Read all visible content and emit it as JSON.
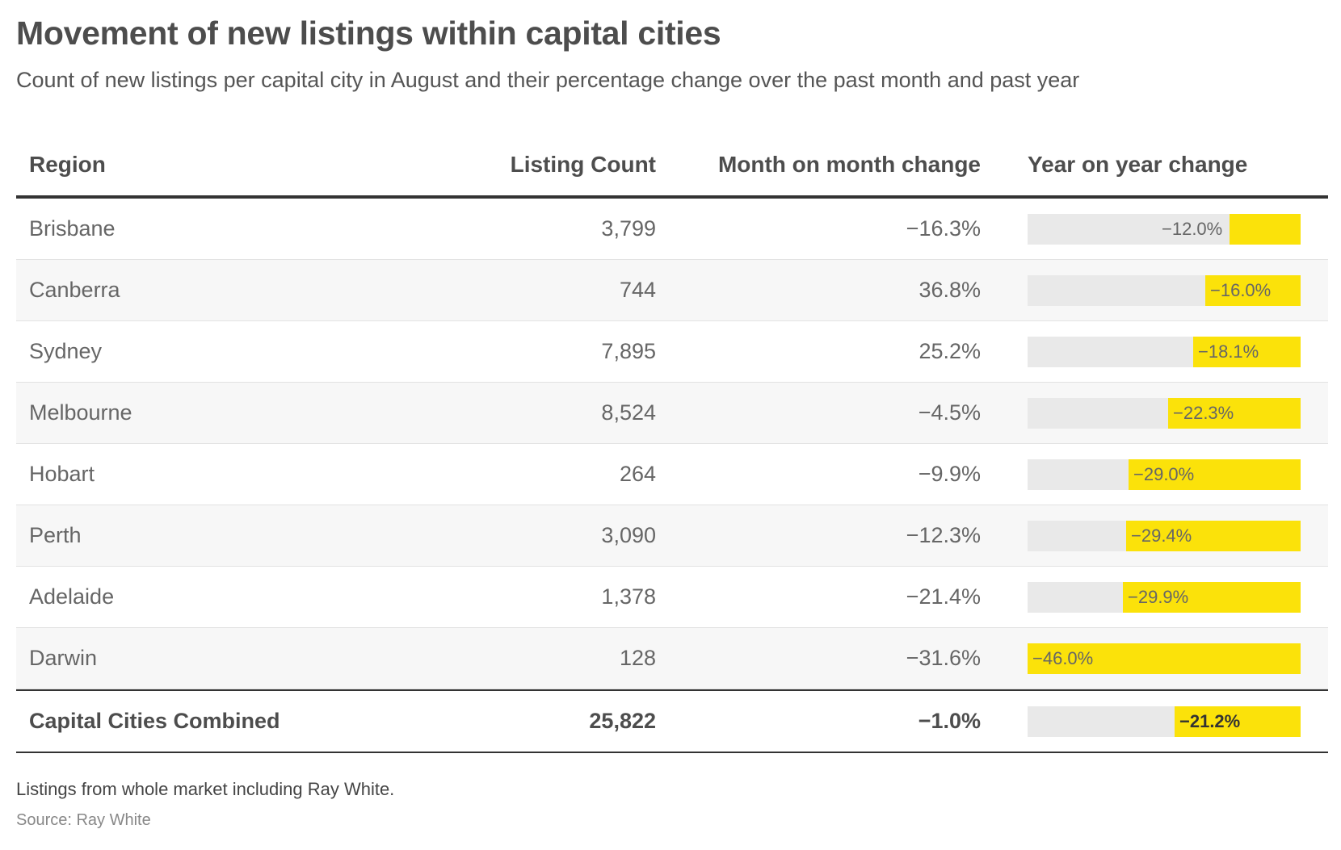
{
  "title": "Movement of new listings within capital cities",
  "subtitle": "Count of new listings per capital city in August and their percentage change over the past month and past year",
  "chart_data": {
    "type": "table",
    "columns": [
      "Region",
      "Listing Count",
      "Month on month change",
      "Year on year change"
    ],
    "rows": [
      {
        "region": "Brisbane",
        "count": "3,799",
        "mom": "−16.3%",
        "yoy": "−12.0%",
        "yoy_value": -12.0
      },
      {
        "region": "Canberra",
        "count": "744",
        "mom": "36.8%",
        "yoy": "−16.0%",
        "yoy_value": -16.0
      },
      {
        "region": "Sydney",
        "count": "7,895",
        "mom": "25.2%",
        "yoy": "−18.1%",
        "yoy_value": -18.1
      },
      {
        "region": "Melbourne",
        "count": "8,524",
        "mom": "−4.5%",
        "yoy": "−22.3%",
        "yoy_value": -22.3
      },
      {
        "region": "Hobart",
        "count": "264",
        "mom": "−9.9%",
        "yoy": "−29.0%",
        "yoy_value": -29.0
      },
      {
        "region": "Perth",
        "count": "3,090",
        "mom": "−12.3%",
        "yoy": "−29.4%",
        "yoy_value": -29.4
      },
      {
        "region": "Adelaide",
        "count": "1,378",
        "mom": "−21.4%",
        "yoy": "−29.9%",
        "yoy_value": -29.9
      },
      {
        "region": "Darwin",
        "count": "128",
        "mom": "−31.6%",
        "yoy": "−46.0%",
        "yoy_value": -46.0
      }
    ],
    "total": {
      "region": "Capital Cities Combined",
      "count": "25,822",
      "mom": "−1.0%",
      "yoy": "−21.2%",
      "yoy_value": -21.2
    },
    "yoy_bar_range": [
      -46.0,
      0
    ],
    "bar_color": "#fbe20a",
    "bar_track_color": "#e9e9e9"
  },
  "note": "Listings from whole market including Ray White.",
  "source": "Source: Ray White"
}
